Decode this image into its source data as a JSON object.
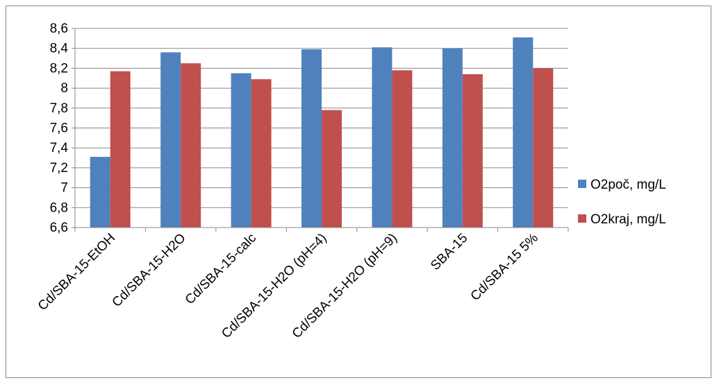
{
  "chart_data": {
    "type": "bar",
    "title": "",
    "xlabel": "",
    "ylabel": "",
    "categories": [
      "Cd/SBA-15-EtOH",
      "Cd/SBA-15-H2O",
      "Cd/SBA-15-calc",
      "Cd/SBA-15-H2O (pH=4)",
      "Cd/SBA-15-H2O (pH=9)",
      "SBA-15",
      "Cd/SBA-15 5%"
    ],
    "series": [
      {
        "name": "O2poč, mg/L",
        "color": "#4F81BD",
        "values": [
          7.31,
          8.36,
          8.15,
          8.39,
          8.41,
          8.4,
          8.51
        ]
      },
      {
        "name": "O2kraj, mg/L",
        "color": "#C0504D",
        "values": [
          8.17,
          8.25,
          8.09,
          7.78,
          8.18,
          8.14,
          8.2
        ]
      }
    ],
    "ylim": [
      6.6,
      8.6
    ],
    "ytick_labels": [
      "6,6",
      "6,8",
      "7",
      "7,2",
      "7,4",
      "7,6",
      "7,8",
      "8",
      "8,2",
      "8,4",
      "8,6"
    ],
    "grid": true,
    "legend_position": "right"
  }
}
